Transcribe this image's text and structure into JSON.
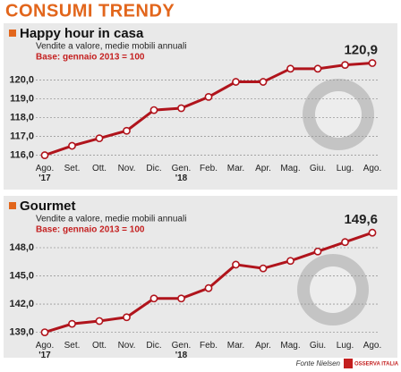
{
  "header": {
    "title": "CONSUMI TRENDY"
  },
  "chart_data": [
    {
      "type": "line",
      "title": "Happy hour in casa",
      "subtitle": "Vendite a valore, medie mobili annuali",
      "note": "Base: gennaio 2013 = 100",
      "categories": [
        "Ago.\n'17",
        "Set.",
        "Ott.",
        "Nov.",
        "Dic.",
        "Gen.\n'18",
        "Feb.",
        "Mar.",
        "Apr.",
        "Mag.",
        "Giu.",
        "Lug.",
        "Ago."
      ],
      "values": [
        116.0,
        116.5,
        116.9,
        117.3,
        118.4,
        118.5,
        119.1,
        119.9,
        119.9,
        120.6,
        120.6,
        120.8,
        120.9
      ],
      "value_labels": [
        null,
        null,
        null,
        null,
        null,
        null,
        null,
        null,
        null,
        null,
        null,
        null,
        "120,9"
      ],
      "color": "#b0141c",
      "ylim": [
        115.6,
        121.4
      ],
      "yticks": [
        {
          "value": 116,
          "label": "116,0"
        },
        {
          "value": 117,
          "label": "117,0"
        },
        {
          "value": 118,
          "label": "118,0"
        },
        {
          "value": 119,
          "label": "119,0"
        },
        {
          "value": 120,
          "label": "120,0"
        }
      ],
      "grid": true
    },
    {
      "type": "line",
      "title": "Gourmet",
      "subtitle": "Vendite a valore, medie mobili annuali",
      "note": "Base: gennaio 2013 = 100",
      "categories": [
        "Ago.\n'17",
        "Set.",
        "Ott.",
        "Nov.",
        "Dic.",
        "Gen.\n'18",
        "Feb.",
        "Mar.",
        "Apr.",
        "Mag.",
        "Giu.",
        "Lug.",
        "Ago."
      ],
      "values": [
        139.0,
        139.9,
        140.2,
        140.6,
        142.6,
        142.6,
        143.7,
        146.2,
        145.8,
        146.6,
        147.6,
        148.6,
        149.6
      ],
      "value_labels": [
        null,
        null,
        null,
        null,
        null,
        null,
        null,
        null,
        null,
        null,
        null,
        null,
        "149,6"
      ],
      "color": "#b0141c",
      "ylim": [
        138.2,
        150.0
      ],
      "yticks": [
        {
          "value": 139,
          "label": "139,0"
        },
        {
          "value": 142,
          "label": "142,0"
        },
        {
          "value": 145,
          "label": "145,0"
        },
        {
          "value": 148,
          "label": "148,0"
        }
      ],
      "grid": true
    }
  ],
  "footer": {
    "source": "Fonte Nielsen",
    "logo": "OSSERVA ITALIA"
  }
}
